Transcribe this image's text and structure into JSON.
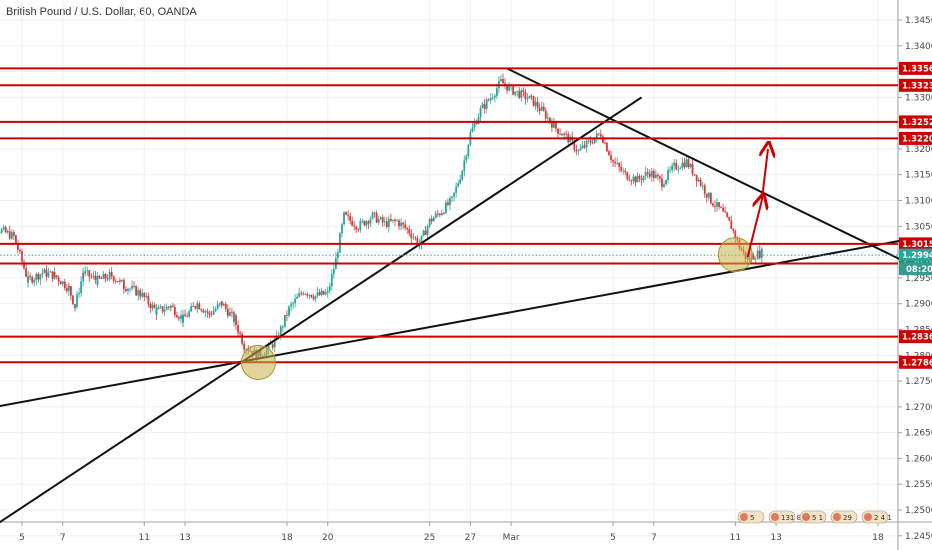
{
  "chart_data": {
    "type": "candlestick",
    "title": "British Pound / U.S. Dollar, 60, OANDA",
    "ylim": [
      1.2455,
      1.348
    ],
    "grid": true,
    "x_ticks": [
      {
        "label": "5",
        "t": 5
      },
      {
        "label": "7",
        "t": 7
      },
      {
        "label": "11",
        "t": 11
      },
      {
        "label": "13",
        "t": 13
      },
      {
        "label": "18",
        "t": 18
      },
      {
        "label": "20",
        "t": 20
      },
      {
        "label": "25",
        "t": 25
      },
      {
        "label": "27",
        "t": 27
      },
      {
        "label": "Mar",
        "t": 29
      },
      {
        "label": "5",
        "t": 34
      },
      {
        "label": "7",
        "t": 36
      },
      {
        "label": "11",
        "t": 40
      },
      {
        "label": "13",
        "t": 42
      },
      {
        "label": "18",
        "t": 47
      }
    ],
    "y_ticks": [
      "1.24500",
      "1.25000",
      "1.25500",
      "1.26000",
      "1.26500",
      "1.27000",
      "1.27500",
      "1.28000",
      "1.28500",
      "1.29000",
      "1.29500",
      "1.30000",
      "1.30500",
      "1.31000",
      "1.31500",
      "1.32000",
      "1.32500",
      "1.33000",
      "1.33500",
      "1.34000",
      "1.34500"
    ],
    "horizontal_levels": [
      {
        "label": "1.33562",
        "value": 1.33562
      },
      {
        "label": "1.33234",
        "value": 1.33234
      },
      {
        "label": "1.32524",
        "value": 1.32524
      },
      {
        "label": "1.32204",
        "value": 1.32204
      },
      {
        "label": "1.30159",
        "value": 1.30159
      },
      {
        "label": "1.29780",
        "value": 1.2978
      },
      {
        "label": "1.28361",
        "value": 1.28361
      },
      {
        "label": "1.27864",
        "value": 1.27864
      }
    ],
    "price_marker": {
      "value": 1.29942,
      "label": "1.29942",
      "countdown": "08:20"
    },
    "trend_lines": [
      {
        "name": "support-rising",
        "from": {
          "t": 3.0,
          "y": 1.2695
        },
        "to": {
          "t": 48.5,
          "y": 1.3025
        }
      },
      {
        "name": "support-steep",
        "from": {
          "t": 3.4,
          "y": 1.2463
        },
        "to": {
          "t": 35.4,
          "y": 1.33
        }
      },
      {
        "name": "resistance-falling",
        "from": {
          "t": 28.8,
          "y": 1.3356
        },
        "to": {
          "t": 48.4,
          "y": 1.298
        }
      }
    ],
    "circles": [
      {
        "t": 16.6,
        "y": 1.2786
      },
      {
        "t": 40.0,
        "y": 1.2995
      }
    ],
    "arrows": [
      {
        "from": {
          "t": 40.6,
          "y": 1.299
        },
        "mid": {
          "t": 41.3,
          "y": 1.31
        },
        "to": {
          "t": 41.6,
          "y": 1.32
        }
      }
    ],
    "price_path": [
      [
        3.0,
        1.307
      ],
      [
        3.8,
        1.3045
      ],
      [
        4.6,
        1.303
      ],
      [
        5.3,
        1.2945
      ],
      [
        6.0,
        1.296
      ],
      [
        6.6,
        1.2955
      ],
      [
        7.3,
        1.293
      ],
      [
        7.6,
        1.2895
      ],
      [
        8.0,
        1.296
      ],
      [
        8.7,
        1.2945
      ],
      [
        9.4,
        1.2955
      ],
      [
        10.0,
        1.2935
      ],
      [
        10.8,
        1.292
      ],
      [
        11.6,
        1.2885
      ],
      [
        12.3,
        1.2895
      ],
      [
        12.9,
        1.287
      ],
      [
        13.6,
        1.29
      ],
      [
        14.2,
        1.288
      ],
      [
        14.8,
        1.29
      ],
      [
        15.4,
        1.287
      ],
      [
        15.9,
        1.282
      ],
      [
        16.5,
        1.28
      ],
      [
        17.0,
        1.281
      ],
      [
        17.5,
        1.283
      ],
      [
        18.1,
        1.289
      ],
      [
        18.8,
        1.2925
      ],
      [
        19.4,
        1.2915
      ],
      [
        20.0,
        1.292
      ],
      [
        20.4,
        1.2985
      ],
      [
        20.8,
        1.307
      ],
      [
        21.5,
        1.305
      ],
      [
        22.2,
        1.307
      ],
      [
        22.8,
        1.3055
      ],
      [
        23.4,
        1.306
      ],
      [
        24.0,
        1.304
      ],
      [
        24.5,
        1.3015
      ],
      [
        25.0,
        1.306
      ],
      [
        25.6,
        1.308
      ],
      [
        26.1,
        1.31
      ],
      [
        26.6,
        1.316
      ],
      [
        27.0,
        1.323
      ],
      [
        27.5,
        1.3275
      ],
      [
        28.0,
        1.33
      ],
      [
        28.5,
        1.333
      ],
      [
        29.0,
        1.3315
      ],
      [
        29.5,
        1.3305
      ],
      [
        30.0,
        1.3295
      ],
      [
        30.6,
        1.327
      ],
      [
        31.2,
        1.324
      ],
      [
        31.8,
        1.322
      ],
      [
        32.3,
        1.3195
      ],
      [
        32.9,
        1.3215
      ],
      [
        33.4,
        1.323
      ],
      [
        34.0,
        1.3175
      ],
      [
        34.6,
        1.315
      ],
      [
        35.2,
        1.314
      ],
      [
        35.8,
        1.3155
      ],
      [
        36.4,
        1.3135
      ],
      [
        37.0,
        1.3165
      ],
      [
        37.6,
        1.3175
      ],
      [
        38.2,
        1.314
      ],
      [
        38.8,
        1.31
      ],
      [
        39.3,
        1.308
      ],
      [
        39.8,
        1.305
      ],
      [
        40.2,
        1.301
      ],
      [
        40.6,
        1.2985
      ],
      [
        41.0,
        1.2995
      ],
      [
        41.4,
        1.3
      ]
    ],
    "legend_items": [
      "5",
      "131 8",
      "5 1",
      "29",
      "2 4 1"
    ],
    "colors": {
      "level": "#cc0000",
      "level_label": "#cc0000",
      "trend": "#111111",
      "up": "#26a69a",
      "down": "#d43a3a",
      "circle": "#c9b24a",
      "price_marker": "#26a69a",
      "grid": "#eef1f4"
    }
  }
}
